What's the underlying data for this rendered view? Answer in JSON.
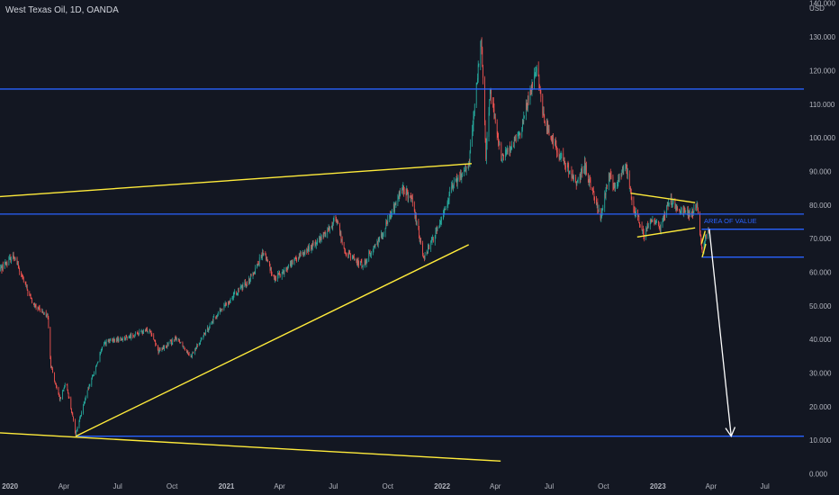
{
  "header": {
    "title": "West Texas Oil, 1D, OANDA",
    "currency": "USD"
  },
  "colors": {
    "background": "#131722",
    "up_candle": "#26a69a",
    "down_candle": "#ef5350",
    "trendline": "#ffeb3b",
    "level_line": "#2962ff",
    "arrow": "#ffffff",
    "axis_text": "#b2b5be",
    "annotation_text": "#2962ff"
  },
  "chart_data": {
    "type": "candlestick",
    "title": "West Texas Oil, 1D, OANDA",
    "currency": "USD",
    "ylim": [
      -2,
      141
    ],
    "xlim": [
      "2019-12-15",
      "2023-09-05"
    ],
    "y_ticks": [
      "0.000",
      "10.000",
      "20.000",
      "30.000",
      "40.000",
      "50.000",
      "60.000",
      "70.000",
      "80.000",
      "90.000",
      "100.000",
      "110.000",
      "120.000",
      "130.000",
      "140.000"
    ],
    "y_tick_values": [
      0,
      10,
      20,
      30,
      40,
      50,
      60,
      70,
      80,
      90,
      100,
      110,
      120,
      130,
      140
    ],
    "x_ticks": [
      {
        "label": "2020",
        "date": "2020-01-01",
        "bold": true
      },
      {
        "label": "Apr",
        "date": "2020-04-01"
      },
      {
        "label": "Jul",
        "date": "2020-07-01"
      },
      {
        "label": "Oct",
        "date": "2020-10-01"
      },
      {
        "label": "2021",
        "date": "2021-01-01",
        "bold": true
      },
      {
        "label": "Apr",
        "date": "2021-04-01"
      },
      {
        "label": "Jul",
        "date": "2021-07-01"
      },
      {
        "label": "Oct",
        "date": "2021-10-01"
      },
      {
        "label": "2022",
        "date": "2022-01-01",
        "bold": true
      },
      {
        "label": "Apr",
        "date": "2022-04-01"
      },
      {
        "label": "Jul",
        "date": "2022-07-01"
      },
      {
        "label": "Oct",
        "date": "2022-10-01"
      },
      {
        "label": "2023",
        "date": "2023-01-01",
        "bold": true
      },
      {
        "label": "Apr",
        "date": "2023-04-01"
      },
      {
        "label": "Jul",
        "date": "2023-07-01"
      }
    ],
    "price_path": [
      [
        "2019-12-15",
        61
      ],
      [
        "2020-01-08",
        65
      ],
      [
        "2020-01-20",
        59
      ],
      [
        "2020-02-10",
        50
      ],
      [
        "2020-03-05",
        47
      ],
      [
        "2020-03-10",
        32
      ],
      [
        "2020-03-25",
        22
      ],
      [
        "2020-04-05",
        27
      ],
      [
        "2020-04-21",
        12
      ],
      [
        "2020-05-10",
        24
      ],
      [
        "2020-06-08",
        39
      ],
      [
        "2020-07-15",
        40.5
      ],
      [
        "2020-08-25",
        43
      ],
      [
        "2020-09-08",
        36.5
      ],
      [
        "2020-10-10",
        40.5
      ],
      [
        "2020-11-02",
        35
      ],
      [
        "2020-12-10",
        46
      ],
      [
        "2021-01-10",
        52.5
      ],
      [
        "2021-02-10",
        58
      ],
      [
        "2021-03-05",
        66
      ],
      [
        "2021-03-23",
        58
      ],
      [
        "2021-05-10",
        65.5
      ],
      [
        "2021-06-10",
        70
      ],
      [
        "2021-07-06",
        76
      ],
      [
        "2021-07-20",
        66
      ],
      [
        "2021-08-20",
        62
      ],
      [
        "2021-09-20",
        71
      ],
      [
        "2021-10-26",
        85
      ],
      [
        "2021-11-10",
        81.5
      ],
      [
        "2021-12-01",
        64.5
      ],
      [
        "2021-12-20",
        71
      ],
      [
        "2022-01-20",
        86
      ],
      [
        "2022-02-15",
        92
      ],
      [
        "2022-03-08",
        129
      ],
      [
        "2022-03-16",
        95
      ],
      [
        "2022-03-23",
        114
      ],
      [
        "2022-04-11",
        94
      ],
      [
        "2022-05-10",
        100
      ],
      [
        "2022-05-25",
        110
      ],
      [
        "2022-06-10",
        122
      ],
      [
        "2022-06-20",
        107
      ],
      [
        "2022-07-15",
        96
      ],
      [
        "2022-08-16",
        86.5
      ],
      [
        "2022-08-30",
        92
      ],
      [
        "2022-09-26",
        76.5
      ],
      [
        "2022-10-10",
        89
      ],
      [
        "2022-10-20",
        85
      ],
      [
        "2022-11-07",
        92
      ],
      [
        "2022-11-20",
        80
      ],
      [
        "2022-12-09",
        71
      ],
      [
        "2022-12-20",
        76
      ],
      [
        "2023-01-05",
        73
      ],
      [
        "2023-01-20",
        81.5
      ],
      [
        "2023-02-10",
        78
      ],
      [
        "2023-03-01",
        77.5
      ],
      [
        "2023-03-08",
        80
      ],
      [
        "2023-03-17",
        66
      ],
      [
        "2023-03-22",
        70
      ],
      [
        "2023-03-28",
        72
      ]
    ],
    "horizontal_levels": [
      114.5,
      77.3,
      72.8,
      64.5,
      11.2
    ],
    "level_starts": [
      "2019-12-15",
      "2019-12-15",
      "2023-03-16",
      "2023-03-16",
      "2020-04-21"
    ],
    "trendlines": [
      {
        "from": [
          "2019-12-15",
          82.5
        ],
        "to": [
          "2022-02-20",
          92.3
        ]
      },
      {
        "from": [
          "2020-04-21",
          11.2
        ],
        "to": [
          "2022-02-15",
          68.2
        ]
      },
      {
        "from": [
          "2019-12-15",
          12.2
        ],
        "to": [
          "2022-04-10",
          3.8
        ]
      },
      {
        "from": [
          "2022-11-16",
          83.5
        ],
        "to": [
          "2023-03-05",
          80.7
        ]
      },
      {
        "from": [
          "2022-11-27",
          70.5
        ],
        "to": [
          "2023-03-05",
          73.2
        ]
      },
      {
        "from": [
          "2023-03-16",
          68.5
        ],
        "to": [
          "2023-03-22",
          72.3
        ]
      },
      {
        "from": [
          "2023-03-17",
          64.5
        ],
        "to": [
          "2023-03-23",
          68.4
        ]
      }
    ],
    "arrow": {
      "from": [
        "2023-03-29",
        72.8
      ],
      "to": [
        "2023-05-05",
        11.2
      ]
    },
    "annotation": {
      "text": "AREA OF VALUE",
      "at": [
        "2023-03-20",
        74.6
      ]
    }
  }
}
